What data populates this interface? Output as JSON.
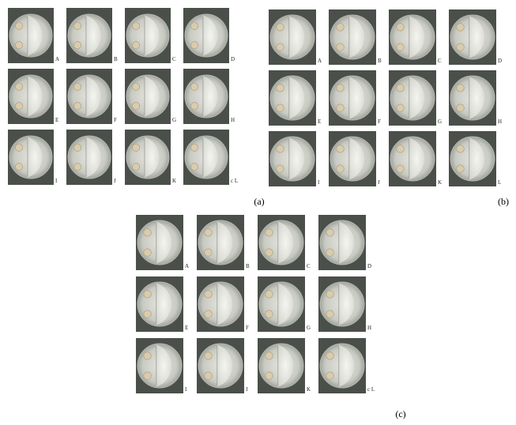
{
  "panels": [
    {
      "label": "(a)",
      "dishes": [
        "A",
        "B",
        "C",
        "D",
        "E",
        "F",
        "G",
        "H",
        "I",
        "J",
        "K",
        "c L"
      ]
    },
    {
      "label": "(b)",
      "dishes": [
        "A",
        "B",
        "C",
        "D",
        "E",
        "F",
        "G",
        "H",
        "I",
        "J",
        "K",
        "L"
      ]
    },
    {
      "label": "(c)",
      "dishes": [
        "A",
        "B",
        "C",
        "D",
        "E",
        "F",
        "G",
        "H",
        "I",
        "J",
        "K",
        "c L"
      ]
    }
  ]
}
